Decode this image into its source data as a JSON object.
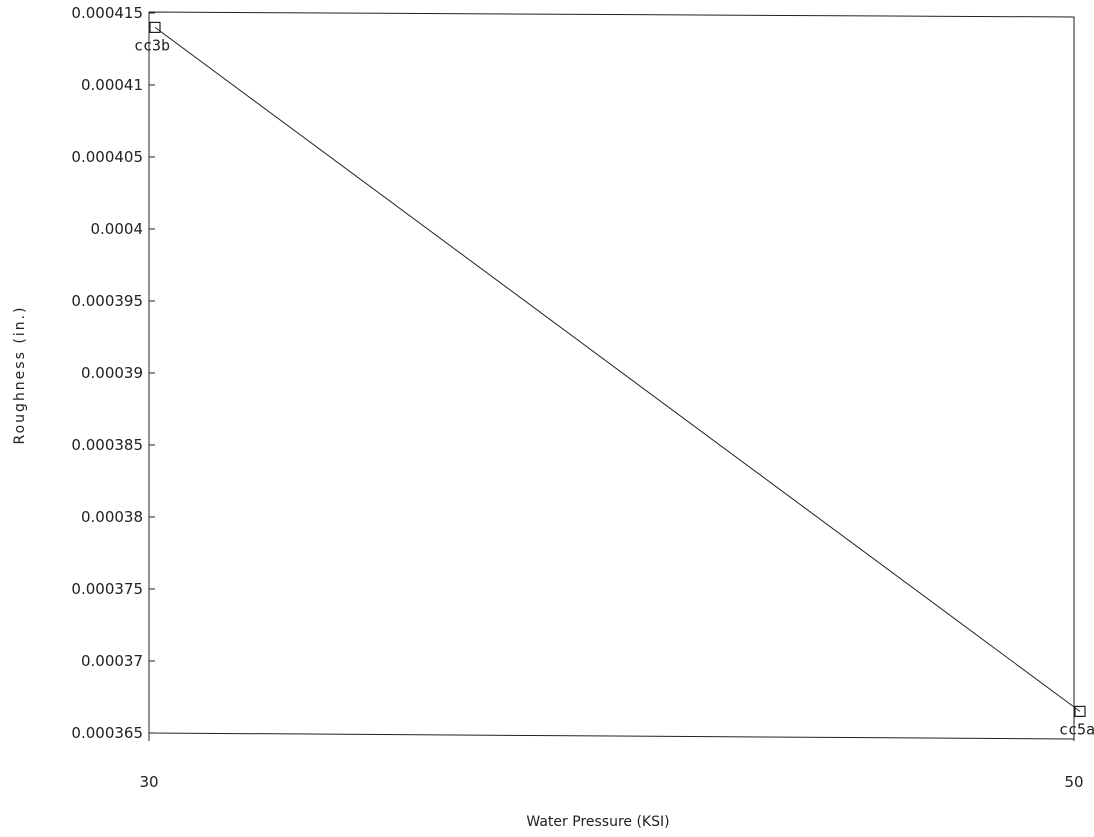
{
  "chart_data": {
    "type": "line",
    "title": "",
    "xlabel": "Water Pressure (KSI)",
    "ylabel": "Roughness (in.)",
    "xlim": [
      30,
      50
    ],
    "ylim": [
      0.000365,
      0.000415
    ],
    "x_ticks": [
      "30",
      "50"
    ],
    "y_ticks": [
      "0.000365",
      "0.00037",
      "0.000375",
      "0.00038",
      "0.000385",
      "0.00039",
      "0.000395",
      "0.0004",
      "0.000405",
      "0.00041",
      "0.000415"
    ],
    "grid": false,
    "legend": "none",
    "series": [
      {
        "marker": "square",
        "color": "#222222",
        "points": [
          {
            "x": 30,
            "y": 0.000414,
            "label": "cc3b"
          },
          {
            "x": 50,
            "y": 0.0003665,
            "label": "cc5a"
          }
        ]
      }
    ]
  }
}
